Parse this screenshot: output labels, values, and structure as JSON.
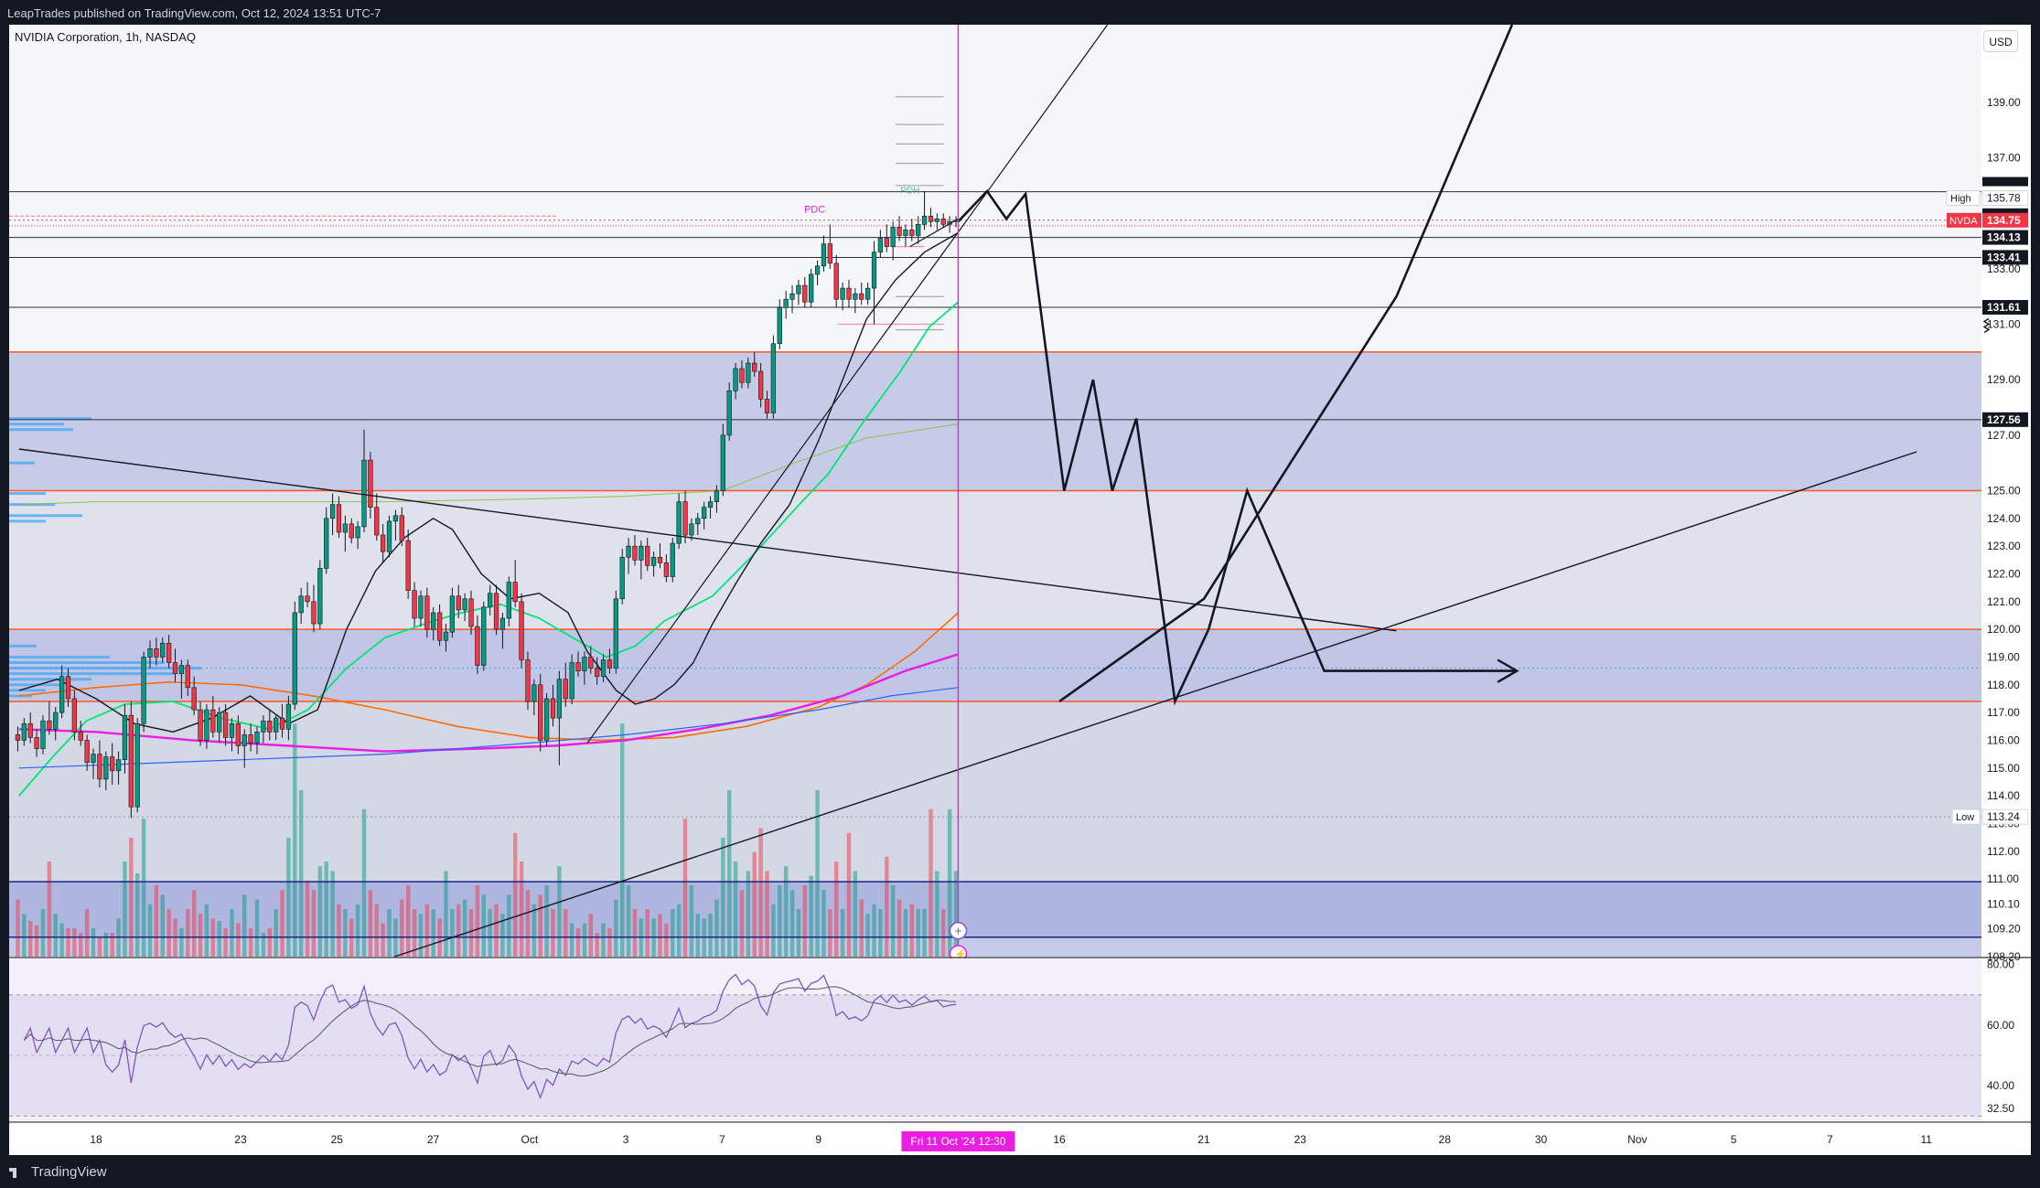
{
  "header": {
    "published_text": "LeapTrades published on TradingView.com, Oct 12, 2024 13:51 UTC-7"
  },
  "chart_toolbar": {
    "symbol_label": "NVIDIA Corporation, 1h, NASDAQ",
    "currency": "USD"
  },
  "footer": {
    "logo_text": "TradingView"
  },
  "colors": {
    "up": "#089981",
    "down": "#f23645",
    "ema_green": "#00e676",
    "ma_orange": "#ff6d00",
    "ma_magenta": "#e91ee0",
    "ma_blue": "#2962ff",
    "price_label": "#f23645",
    "zone_fill": "#9fa8da"
  },
  "chart_data": {
    "type": "candlestick",
    "symbol": "NVDA",
    "interval": "1h",
    "ylim": [
      108.2,
      141.8
    ],
    "y_ticks": [
      108.2,
      109.2,
      110.1,
      111.0,
      112.0,
      113.0,
      114.0,
      115.0,
      116.0,
      117.0,
      118.0,
      119.0,
      120.0,
      121.0,
      122.0,
      123.0,
      124.0,
      125.0,
      127.0,
      129.0,
      131.0,
      133.0,
      135.0,
      137.0,
      139.0
    ],
    "y_tick_labels": [
      "108.20",
      "109.20",
      "110.10",
      "111.00",
      "112.00",
      "113.00",
      "114.00",
      "115.00",
      "116.00",
      "117.00",
      "118.00",
      "119.00",
      "120.00",
      "121.00",
      "122.00",
      "123.00",
      "124.00",
      "125.00",
      "127.00",
      "129.00",
      "131.00",
      "133.00",
      "135.00",
      "137.00",
      "139.00"
    ],
    "x_ticks": [
      {
        "label": "18",
        "d": 0
      },
      {
        "label": "23",
        "d": 3
      },
      {
        "label": "25",
        "d": 5
      },
      {
        "label": "27",
        "d": 7
      },
      {
        "label": "Oct",
        "d": 9
      },
      {
        "label": "3",
        "d": 11
      },
      {
        "label": "7",
        "d": 13
      },
      {
        "label": "9",
        "d": 15
      },
      {
        "label": "16",
        "d": 20
      },
      {
        "label": "21",
        "d": 23
      },
      {
        "label": "23",
        "d": 25
      },
      {
        "label": "28",
        "d": 28
      },
      {
        "label": "30",
        "d": 30
      },
      {
        "label": "Nov",
        "d": 32
      },
      {
        "label": "5",
        "d": 34
      },
      {
        "label": "7",
        "d": 36
      },
      {
        "label": "11",
        "d": 38
      }
    ],
    "crosshair": {
      "label": "Fri 11 Oct '24   12:30",
      "d": 17.9
    },
    "last_bar_d": 17.9,
    "price_labels": [
      {
        "text": "High",
        "value": 135.78,
        "kind": "high"
      },
      {
        "text": "Low",
        "value": 113.24,
        "kind": "low"
      },
      {
        "text": "NVDA",
        "value": 134.75,
        "kind": "symbol"
      }
    ],
    "level_values": [
      {
        "value": 134.13,
        "text": "134.13"
      },
      {
        "value": 133.41,
        "text": "133.41"
      },
      {
        "value": 131.61,
        "text": "131.61"
      },
      {
        "value": 127.56,
        "text": "127.56"
      }
    ],
    "candles": [
      [
        116.2,
        116.5,
        115.6,
        116.0
      ],
      [
        116.0,
        116.8,
        115.8,
        116.6
      ],
      [
        116.6,
        117.0,
        115.9,
        116.1
      ],
      [
        116.1,
        116.4,
        115.4,
        115.7
      ],
      [
        115.7,
        116.9,
        115.5,
        116.7
      ],
      [
        116.7,
        117.4,
        116.2,
        116.4
      ],
      [
        116.4,
        117.2,
        116.0,
        117.0
      ],
      [
        117.0,
        118.7,
        116.8,
        118.3
      ],
      [
        118.3,
        118.6,
        117.2,
        117.5
      ],
      [
        117.5,
        117.8,
        116.0,
        116.3
      ],
      [
        116.3,
        116.7,
        115.8,
        116.0
      ],
      [
        116.0,
        116.2,
        114.9,
        115.2
      ],
      [
        115.2,
        115.7,
        114.6,
        115.5
      ],
      [
        115.5,
        116.0,
        114.3,
        114.6
      ],
      [
        114.6,
        115.6,
        114.2,
        115.4
      ],
      [
        115.4,
        115.9,
        114.4,
        114.9
      ],
      [
        114.9,
        115.6,
        114.4,
        115.3
      ],
      [
        115.3,
        117.3,
        114.8,
        116.9
      ],
      [
        116.9,
        117.4,
        113.2,
        113.6
      ],
      [
        113.6,
        116.8,
        113.4,
        116.6
      ],
      [
        116.6,
        119.2,
        116.3,
        119.0
      ],
      [
        119.0,
        119.6,
        118.6,
        119.3
      ],
      [
        119.3,
        119.7,
        118.7,
        119.0
      ],
      [
        119.0,
        119.7,
        118.8,
        119.5
      ],
      [
        119.5,
        119.8,
        118.6,
        118.8
      ],
      [
        118.8,
        119.3,
        118.1,
        118.4
      ],
      [
        118.4,
        118.9,
        117.5,
        118.7
      ],
      [
        118.7,
        118.9,
        117.6,
        117.9
      ],
      [
        117.9,
        118.3,
        116.9,
        117.1
      ],
      [
        117.1,
        117.4,
        115.8,
        116.0
      ],
      [
        116.0,
        117.3,
        115.7,
        117.1
      ],
      [
        117.1,
        117.6,
        116.1,
        116.3
      ],
      [
        116.3,
        117.2,
        115.9,
        117.0
      ],
      [
        117.0,
        117.3,
        115.8,
        116.1
      ],
      [
        116.1,
        116.8,
        115.6,
        116.6
      ],
      [
        116.6,
        116.9,
        115.5,
        115.8
      ],
      [
        115.8,
        116.4,
        115.0,
        116.2
      ],
      [
        116.2,
        116.6,
        115.6,
        115.9
      ],
      [
        115.9,
        116.5,
        115.5,
        116.3
      ],
      [
        116.3,
        116.9,
        115.9,
        116.7
      ],
      [
        116.7,
        117.1,
        116.0,
        116.3
      ],
      [
        116.3,
        116.9,
        116.0,
        116.8
      ],
      [
        116.8,
        117.3,
        116.1,
        116.4
      ],
      [
        116.4,
        117.6,
        116.0,
        117.3
      ],
      [
        117.3,
        121.0,
        117.1,
        120.6
      ],
      [
        120.6,
        121.5,
        120.2,
        121.2
      ],
      [
        121.2,
        121.7,
        120.8,
        121.0
      ],
      [
        121.0,
        121.6,
        119.9,
        120.2
      ],
      [
        120.2,
        122.5,
        120.0,
        122.2
      ],
      [
        122.2,
        124.4,
        122.0,
        124.0
      ],
      [
        124.0,
        124.9,
        123.4,
        124.5
      ],
      [
        124.5,
        124.8,
        123.3,
        123.5
      ],
      [
        123.5,
        124.1,
        122.8,
        123.8
      ],
      [
        123.8,
        124.0,
        123.1,
        123.3
      ],
      [
        123.3,
        123.9,
        122.9,
        123.7
      ],
      [
        123.7,
        127.2,
        123.5,
        126.1
      ],
      [
        126.1,
        126.4,
        124.0,
        124.4
      ],
      [
        124.4,
        124.9,
        123.2,
        123.4
      ],
      [
        123.4,
        123.8,
        122.4,
        122.8
      ],
      [
        122.8,
        124.1,
        122.6,
        123.9
      ],
      [
        123.9,
        124.3,
        123.2,
        124.1
      ],
      [
        124.1,
        124.4,
        123.0,
        123.2
      ],
      [
        123.2,
        123.6,
        121.1,
        121.4
      ],
      [
        121.4,
        121.7,
        120.1,
        120.4
      ],
      [
        120.4,
        121.4,
        120.1,
        121.2
      ],
      [
        121.2,
        121.5,
        119.7,
        120.0
      ],
      [
        120.0,
        120.8,
        119.6,
        120.6
      ],
      [
        120.6,
        120.9,
        119.4,
        119.6
      ],
      [
        119.6,
        120.2,
        119.2,
        119.9
      ],
      [
        119.9,
        121.5,
        119.7,
        121.2
      ],
      [
        121.2,
        121.6,
        120.4,
        120.7
      ],
      [
        120.7,
        121.3,
        120.3,
        121.1
      ],
      [
        121.1,
        121.4,
        119.8,
        120.1
      ],
      [
        120.1,
        120.5,
        118.4,
        118.7
      ],
      [
        118.7,
        121.0,
        118.5,
        120.8
      ],
      [
        120.8,
        121.6,
        120.5,
        121.3
      ],
      [
        121.3,
        121.6,
        119.8,
        120.0
      ],
      [
        120.0,
        120.6,
        119.3,
        120.4
      ],
      [
        120.4,
        121.9,
        120.1,
        121.7
      ],
      [
        121.7,
        122.5,
        120.8,
        121.0
      ],
      [
        121.0,
        121.3,
        118.6,
        118.9
      ],
      [
        118.9,
        119.2,
        117.1,
        117.4
      ],
      [
        117.4,
        118.2,
        116.9,
        118.0
      ],
      [
        118.0,
        118.4,
        115.6,
        116.0
      ],
      [
        116.0,
        117.7,
        115.8,
        117.5
      ],
      [
        117.5,
        118.0,
        116.5,
        116.8
      ],
      [
        116.8,
        118.5,
        115.1,
        118.2
      ],
      [
        118.2,
        118.8,
        117.2,
        117.5
      ],
      [
        117.5,
        119.1,
        117.3,
        118.8
      ],
      [
        118.8,
        119.2,
        118.3,
        118.5
      ],
      [
        118.5,
        119.2,
        118.0,
        119.0
      ],
      [
        119.0,
        119.4,
        118.4,
        118.6
      ],
      [
        118.6,
        119.0,
        118.0,
        118.3
      ],
      [
        118.3,
        119.1,
        118.1,
        118.9
      ],
      [
        118.9,
        119.3,
        118.4,
        118.6
      ],
      [
        118.6,
        121.4,
        118.4,
        121.1
      ],
      [
        121.1,
        122.9,
        120.9,
        122.6
      ],
      [
        122.6,
        123.3,
        122.0,
        123.0
      ],
      [
        123.0,
        123.4,
        122.3,
        122.5
      ],
      [
        122.5,
        123.2,
        121.8,
        123.0
      ],
      [
        123.0,
        123.3,
        122.1,
        122.3
      ],
      [
        122.3,
        122.8,
        121.9,
        122.6
      ],
      [
        122.6,
        123.1,
        122.2,
        122.4
      ],
      [
        122.4,
        122.7,
        121.7,
        121.9
      ],
      [
        121.9,
        123.3,
        121.7,
        123.1
      ],
      [
        123.1,
        124.9,
        122.9,
        124.6
      ],
      [
        124.6,
        125.0,
        123.1,
        123.4
      ],
      [
        123.4,
        124.0,
        123.2,
        123.8
      ],
      [
        123.8,
        124.2,
        123.4,
        124.0
      ],
      [
        124.0,
        124.6,
        123.6,
        124.4
      ],
      [
        124.4,
        124.8,
        124.0,
        124.6
      ],
      [
        124.6,
        125.2,
        124.2,
        125.0
      ],
      [
        125.0,
        127.4,
        124.8,
        127.0
      ],
      [
        127.0,
        128.9,
        126.8,
        128.6
      ],
      [
        128.6,
        129.6,
        128.3,
        129.4
      ],
      [
        129.4,
        129.7,
        128.7,
        128.9
      ],
      [
        128.9,
        129.8,
        128.7,
        129.6
      ],
      [
        129.6,
        130.0,
        129.1,
        129.3
      ],
      [
        129.3,
        129.6,
        128.0,
        128.3
      ],
      [
        128.3,
        128.6,
        127.6,
        127.8
      ],
      [
        127.8,
        130.6,
        127.6,
        130.3
      ],
      [
        130.3,
        131.9,
        130.1,
        131.6
      ],
      [
        131.6,
        132.2,
        131.2,
        131.9
      ],
      [
        131.9,
        132.4,
        131.4,
        132.1
      ],
      [
        132.1,
        132.6,
        131.7,
        132.4
      ],
      [
        132.4,
        132.7,
        131.6,
        131.8
      ],
      [
        131.8,
        133.0,
        131.6,
        132.8
      ],
      [
        132.8,
        133.3,
        132.4,
        133.1
      ],
      [
        133.1,
        134.2,
        132.9,
        133.9
      ],
      [
        133.9,
        134.6,
        133.0,
        133.2
      ],
      [
        133.2,
        133.5,
        131.6,
        131.9
      ],
      [
        131.9,
        132.5,
        131.5,
        132.3
      ],
      [
        132.3,
        132.6,
        131.6,
        131.9
      ],
      [
        131.9,
        132.3,
        131.4,
        132.1
      ],
      [
        132.1,
        132.5,
        131.7,
        131.9
      ],
      [
        131.9,
        132.5,
        131.7,
        132.3
      ],
      [
        132.3,
        134.0,
        131.0,
        133.6
      ],
      [
        133.6,
        134.4,
        133.4,
        134.1
      ],
      [
        134.1,
        134.6,
        133.6,
        133.8
      ],
      [
        133.8,
        134.7,
        133.3,
        134.5
      ],
      [
        134.5,
        134.9,
        134.0,
        134.2
      ],
      [
        134.2,
        134.6,
        133.8,
        134.4
      ],
      [
        134.4,
        134.8,
        134.0,
        134.2
      ],
      [
        134.2,
        134.9,
        133.9,
        134.6
      ],
      [
        134.6,
        135.8,
        134.4,
        134.9
      ],
      [
        134.9,
        135.2,
        134.5,
        134.7
      ],
      [
        134.7,
        135.0,
        134.4,
        134.8
      ],
      [
        134.8,
        135.0,
        134.5,
        134.6
      ],
      [
        134.6,
        134.9,
        134.3,
        134.7
      ],
      [
        134.7,
        134.9,
        134.5,
        134.75
      ]
    ],
    "annotations": [
      "PDC",
      "PDH"
    ],
    "rsi": {
      "ylim": [
        28,
        82
      ],
      "y_ticks": [
        32.5,
        40.0,
        60.0,
        80.0
      ],
      "y_tick_labels": [
        "32.50",
        "40.00",
        "60.00",
        "80.00"
      ],
      "band": [
        70,
        30
      ]
    }
  }
}
